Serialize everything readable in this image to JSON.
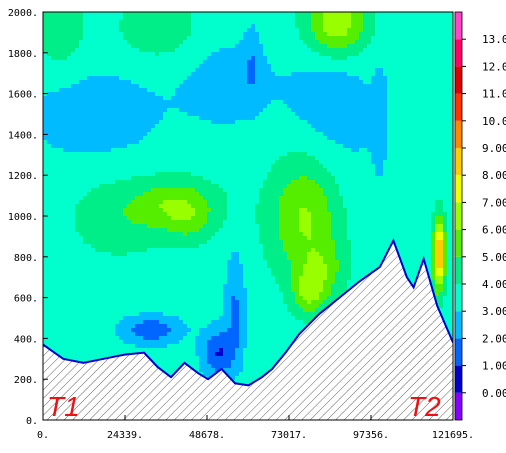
{
  "chart_data": {
    "type": "heatmap",
    "title": "",
    "xlabel": "",
    "ylabel": "",
    "x_ticks": [
      "0.",
      "24339.",
      "48678.",
      "73017.",
      "97356.",
      "121695."
    ],
    "y_ticks": [
      "0.",
      "200.",
      "400.",
      "600.",
      "800.",
      "1000.",
      "1200.",
      "1400.",
      "1600.",
      "1800.",
      "2000."
    ],
    "xlim": [
      0,
      121695
    ],
    "ylim": [
      0,
      2000
    ],
    "colorbar": {
      "levels": [
        "0.000",
        "1.000",
        "2.000",
        "3.000",
        "4.000",
        "5.000",
        "6.000",
        "7.000",
        "8.000",
        "9.000",
        "10.00",
        "11.00",
        "12.00",
        "13.00"
      ],
      "range": [
        -1,
        14
      ],
      "colors": [
        "#8800ff",
        "#0000cc",
        "#0066ff",
        "#00bbff",
        "#00ffcc",
        "#00ee88",
        "#55ee00",
        "#99ff00",
        "#eeff00",
        "#ffcc00",
        "#ff8800",
        "#ff3300",
        "#dd0000",
        "#ff0066",
        "#ff44cc"
      ]
    },
    "background_level": 3.5,
    "terrain": {
      "x": [
        0,
        6000,
        12000,
        18000,
        24000,
        30000,
        34000,
        38000,
        42000,
        46000,
        49000,
        53000,
        57000,
        61000,
        65000,
        68000,
        72000,
        76000,
        82000,
        88000,
        94000,
        100000,
        104000,
        108000,
        110000,
        113000,
        117000,
        121695
      ],
      "y": [
        370,
        300,
        280,
        300,
        320,
        330,
        260,
        210,
        280,
        230,
        200,
        250,
        180,
        170,
        210,
        250,
        330,
        420,
        520,
        600,
        680,
        750,
        880,
        700,
        650,
        790,
        560,
        380
      ]
    },
    "anomalies": [
      {
        "x": 15000,
        "y": 1500,
        "sx": 22000,
        "sy": 260,
        "v": -1.0
      },
      {
        "x": 55000,
        "y": 1650,
        "sx": 14000,
        "sy": 220,
        "v": -1.0
      },
      {
        "x": 32000,
        "y": 440,
        "sx": 9000,
        "sy": 70,
        "v": -2.2
      },
      {
        "x": 52000,
        "y": 330,
        "sx": 5000,
        "sy": 120,
        "v": -2.5
      },
      {
        "x": 57000,
        "y": 560,
        "sx": 3000,
        "sy": 260,
        "v": -1.6
      },
      {
        "x": 62000,
        "y": 1750,
        "sx": 2500,
        "sy": 180,
        "v": -1.0
      },
      {
        "x": 100000,
        "y": 1500,
        "sx": 2200,
        "sy": 250,
        "v": -0.9
      },
      {
        "x": 85000,
        "y": 1600,
        "sx": 12000,
        "sy": 220,
        "v": -1.0
      },
      {
        "x": 88000,
        "y": 1250,
        "sx": 15000,
        "sy": 350,
        "v": -0.6
      },
      {
        "x": 78000,
        "y": 1000,
        "sx": 11000,
        "sy": 300,
        "v": 2.8
      },
      {
        "x": 83000,
        "y": 730,
        "sx": 6500,
        "sy": 130,
        "v": 1.4
      },
      {
        "x": 40000,
        "y": 1050,
        "sx": 12000,
        "sy": 130,
        "v": 2.4
      },
      {
        "x": 44000,
        "y": 950,
        "sx": 6000,
        "sy": 100,
        "v": 0.8
      },
      {
        "x": 22000,
        "y": 1000,
        "sx": 14000,
        "sy": 200,
        "v": 1.2
      },
      {
        "x": 87000,
        "y": 1950,
        "sx": 9000,
        "sy": 170,
        "v": 3.3
      },
      {
        "x": 34000,
        "y": 1920,
        "sx": 12000,
        "sy": 160,
        "v": 1.3
      },
      {
        "x": 79000,
        "y": 620,
        "sx": 5000,
        "sy": 110,
        "v": 2.2
      },
      {
        "x": 5000,
        "y": 1900,
        "sx": 8000,
        "sy": 200,
        "v": 1.2
      },
      {
        "x": 117500,
        "y": 810,
        "sx": 1800,
        "sy": 170,
        "v": 6.0
      }
    ],
    "station_labels": [
      "T1",
      "T2"
    ]
  }
}
